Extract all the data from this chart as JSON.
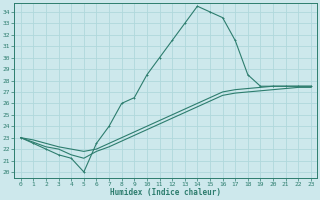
{
  "xlabel": "Humidex (Indice chaleur)",
  "bg_color": "#cde8ec",
  "line_color": "#2d7d6e",
  "grid_color": "#b0d8dc",
  "xlim": [
    -0.5,
    23.5
  ],
  "ylim": [
    19.5,
    34.8
  ],
  "xticks": [
    0,
    1,
    2,
    3,
    4,
    5,
    6,
    7,
    8,
    9,
    10,
    11,
    12,
    13,
    14,
    15,
    16,
    17,
    18,
    19,
    20,
    21,
    22,
    23
  ],
  "yticks": [
    20,
    21,
    22,
    23,
    24,
    25,
    26,
    27,
    28,
    29,
    30,
    31,
    32,
    33,
    34
  ],
  "curve1_x": [
    0,
    1,
    2,
    3,
    4,
    5,
    6,
    7,
    8,
    9,
    10,
    11,
    12,
    13,
    14,
    15,
    16,
    17,
    18,
    19,
    20,
    21,
    22,
    23
  ],
  "curve1_y": [
    23.0,
    22.5,
    22.0,
    21.5,
    21.2,
    20.0,
    22.5,
    24.0,
    26.0,
    26.5,
    28.5,
    30.0,
    31.5,
    33.0,
    34.5,
    34.0,
    33.5,
    31.5,
    28.5,
    27.5,
    27.5,
    27.5,
    27.5,
    27.5
  ],
  "curve2_x": [
    0,
    1,
    2,
    3,
    4,
    5,
    6,
    7,
    8,
    9,
    10,
    11,
    12,
    13,
    14,
    15,
    16,
    17,
    18,
    19,
    20,
    21,
    22,
    23
  ],
  "curve2_y": [
    23.0,
    22.8,
    22.5,
    22.2,
    22.0,
    21.8,
    22.0,
    22.5,
    23.0,
    23.5,
    24.0,
    24.5,
    25.0,
    25.5,
    26.0,
    26.5,
    27.0,
    27.2,
    27.3,
    27.4,
    27.5,
    27.5,
    27.5,
    27.5
  ],
  "curve3_x": [
    0,
    1,
    2,
    3,
    4,
    5,
    6,
    7,
    8,
    9,
    10,
    11,
    12,
    13,
    14,
    15,
    16,
    17,
    18,
    19,
    20,
    21,
    22,
    23
  ],
  "curve3_y": [
    23.0,
    22.6,
    22.2,
    22.0,
    21.5,
    21.2,
    21.8,
    22.2,
    22.7,
    23.2,
    23.7,
    24.2,
    24.7,
    25.2,
    25.7,
    26.2,
    26.7,
    26.9,
    27.0,
    27.1,
    27.2,
    27.3,
    27.4,
    27.4
  ]
}
